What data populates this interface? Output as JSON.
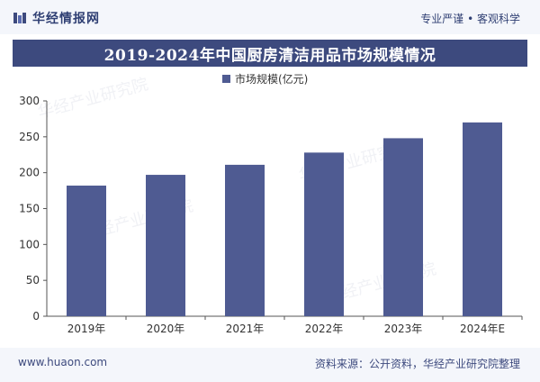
{
  "header": {
    "brand": "华经情报网",
    "slogan": "专业严谨 • 客观科学"
  },
  "footer": {
    "url": "www.huaon.com",
    "source": "资料来源：公开资料，华经产业研究院整理"
  },
  "watermark_text": "华经产业研究院",
  "colors": {
    "bar": "#4f5b92",
    "title_bg": "#3d4a7e",
    "axis": "#555555"
  },
  "chart_data": {
    "type": "bar",
    "title": "2019-2024年中国厨房清洁用品市场规模情况",
    "categories": [
      "2019年",
      "2020年",
      "2021年",
      "2022年",
      "2023年",
      "2024年E"
    ],
    "series": [
      {
        "name": "市场规模(亿元)",
        "values": [
          182,
          197,
          211,
          228,
          248,
          270
        ]
      }
    ],
    "ylim": [
      0,
      300
    ],
    "yticks": [
      0,
      50,
      100,
      150,
      200,
      250,
      300
    ],
    "xlabel": "",
    "ylabel": "",
    "legend": "top-center",
    "grid": false
  }
}
